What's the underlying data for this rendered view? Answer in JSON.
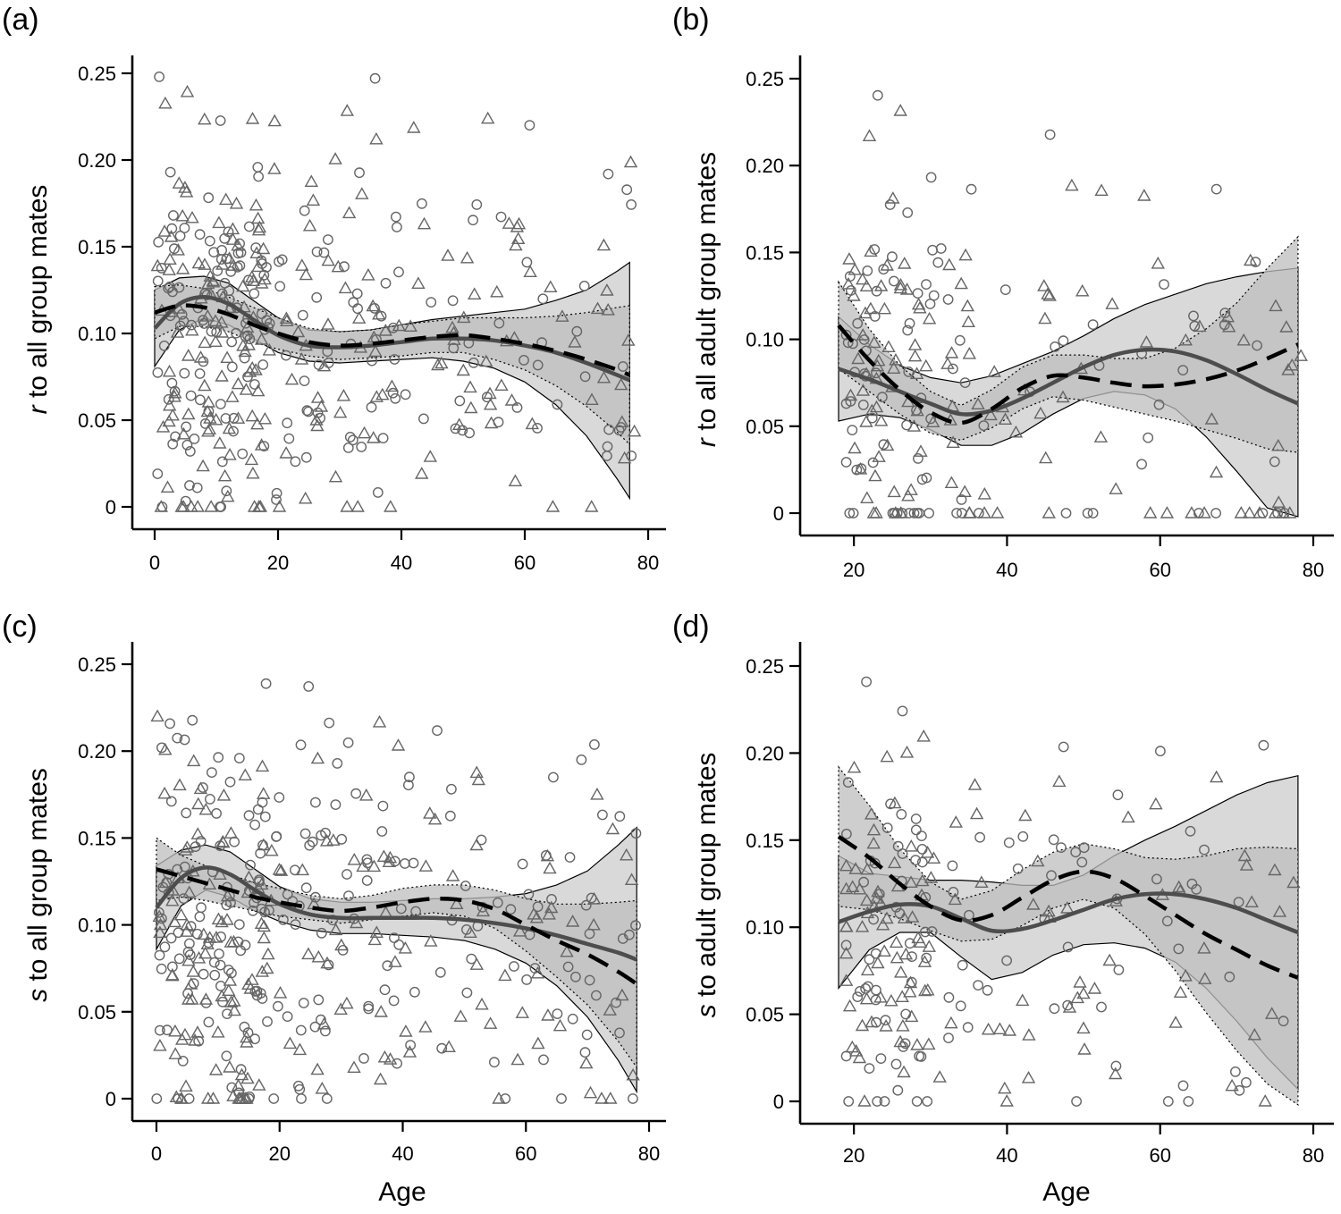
{
  "chart_data": [
    {
      "type": "scatter",
      "panel_label": "(a)",
      "xlabel": "",
      "ylabel_italic": "r",
      "ylabel_rest": " to all group mates",
      "xlim": [
        0,
        80
      ],
      "ylim": [
        0,
        0.25
      ],
      "xticks": [
        0,
        20,
        40,
        60,
        80
      ],
      "yticks": [
        0,
        0.05,
        0.1,
        0.15,
        0.2,
        0.25
      ],
      "ytick_labels": [
        "0",
        "0.05",
        "0.10",
        "0.15",
        "0.20",
        "0.25"
      ],
      "fit_range": [
        0,
        77
      ],
      "series": [
        {
          "style": "solid",
          "fit": {
            "x": [
              0,
              4,
              8,
              12,
              16,
              20,
              25,
              30,
              35,
              40,
              45,
              50,
              55,
              60,
              65,
              70,
              75,
              77
            ],
            "y": [
              0.103,
              0.117,
              0.121,
              0.117,
              0.108,
              0.099,
              0.093,
              0.092,
              0.093,
              0.095,
              0.097,
              0.097,
              0.096,
              0.093,
              0.089,
              0.083,
              0.076,
              0.073
            ]
          },
          "band_width": [
            0.022,
            0.015,
            0.012,
            0.012,
            0.011,
            0.01,
            0.009,
            0.009,
            0.009,
            0.01,
            0.011,
            0.013,
            0.016,
            0.021,
            0.03,
            0.042,
            0.06,
            0.068
          ]
        },
        {
          "style": "dashed",
          "fit": {
            "x": [
              0,
              4,
              8,
              12,
              16,
              20,
              25,
              30,
              35,
              40,
              45,
              50,
              55,
              60,
              65,
              70,
              75,
              77
            ],
            "y": [
              0.112,
              0.116,
              0.115,
              0.111,
              0.105,
              0.1,
              0.095,
              0.093,
              0.094,
              0.096,
              0.098,
              0.099,
              0.097,
              0.094,
              0.09,
              0.085,
              0.079,
              0.076
            ]
          },
          "band_width": [
            0.015,
            0.012,
            0.011,
            0.01,
            0.01,
            0.009,
            0.008,
            0.008,
            0.008,
            0.009,
            0.009,
            0.01,
            0.012,
            0.015,
            0.02,
            0.027,
            0.036,
            0.04
          ]
        }
      ]
    },
    {
      "type": "scatter",
      "panel_label": "(b)",
      "xlabel": "",
      "ylabel_italic": "r",
      "ylabel_rest": " to all adult group mates",
      "xlim": [
        18,
        80
      ],
      "ylim": [
        0,
        0.25
      ],
      "xticks": [
        20,
        40,
        60,
        80
      ],
      "yticks": [
        0,
        0.05,
        0.1,
        0.15,
        0.2,
        0.25
      ],
      "ytick_labels": [
        "0",
        "0.05",
        "0.10",
        "0.15",
        "0.20",
        "0.25"
      ],
      "fit_range": [
        18,
        78
      ],
      "series": [
        {
          "style": "solid",
          "fit": {
            "x": [
              18,
              22,
              26,
              30,
              34,
              38,
              42,
              46,
              50,
              54,
              58,
              62,
              66,
              70,
              74,
              78
            ],
            "y": [
              0.083,
              0.077,
              0.07,
              0.063,
              0.057,
              0.059,
              0.066,
              0.075,
              0.084,
              0.091,
              0.094,
              0.093,
              0.088,
              0.08,
              0.071,
              0.063
            ]
          },
          "band_width": [
            0.03,
            0.02,
            0.015,
            0.015,
            0.018,
            0.02,
            0.02,
            0.018,
            0.018,
            0.021,
            0.026,
            0.033,
            0.044,
            0.056,
            0.068,
            0.078
          ]
        },
        {
          "style": "dashed",
          "fit": {
            "x": [
              18,
              22,
              26,
              30,
              34,
              38,
              42,
              46,
              50,
              54,
              58,
              62,
              66,
              70,
              74,
              78
            ],
            "y": [
              0.108,
              0.088,
              0.071,
              0.058,
              0.052,
              0.06,
              0.072,
              0.079,
              0.078,
              0.075,
              0.073,
              0.074,
              0.077,
              0.082,
              0.089,
              0.097
            ]
          },
          "band_width": [
            0.025,
            0.018,
            0.014,
            0.012,
            0.01,
            0.011,
            0.012,
            0.012,
            0.013,
            0.014,
            0.016,
            0.021,
            0.029,
            0.039,
            0.052,
            0.062
          ]
        }
      ]
    },
    {
      "type": "scatter",
      "panel_label": "(c)",
      "xlabel": "Age",
      "ylabel_italic": "s",
      "ylabel_rest": " to all group mates",
      "xlim": [
        0,
        80
      ],
      "ylim": [
        0,
        0.25
      ],
      "xticks": [
        0,
        20,
        40,
        60,
        80
      ],
      "yticks": [
        0,
        0.05,
        0.1,
        0.15,
        0.2,
        0.25
      ],
      "ytick_labels": [
        "0",
        "0.05",
        "0.10",
        "0.15",
        "0.20",
        "0.25"
      ],
      "fit_range": [
        0,
        78
      ],
      "series": [
        {
          "style": "solid",
          "fit": {
            "x": [
              0,
              4,
              8,
              12,
              16,
              20,
              25,
              30,
              35,
              40,
              45,
              50,
              55,
              60,
              65,
              70,
              75,
              78
            ],
            "y": [
              0.11,
              0.127,
              0.133,
              0.129,
              0.12,
              0.112,
              0.106,
              0.104,
              0.104,
              0.104,
              0.104,
              0.103,
              0.101,
              0.098,
              0.094,
              0.089,
              0.084,
              0.08
            ]
          },
          "band_width": [
            0.024,
            0.016,
            0.013,
            0.013,
            0.012,
            0.01,
            0.009,
            0.009,
            0.009,
            0.01,
            0.011,
            0.012,
            0.015,
            0.02,
            0.029,
            0.042,
            0.062,
            0.076
          ]
        },
        {
          "style": "dashed",
          "fit": {
            "x": [
              0,
              4,
              8,
              12,
              16,
              20,
              25,
              30,
              35,
              40,
              45,
              50,
              55,
              60,
              65,
              70,
              75,
              78
            ],
            "y": [
              0.132,
              0.128,
              0.124,
              0.12,
              0.116,
              0.113,
              0.11,
              0.108,
              0.11,
              0.113,
              0.115,
              0.114,
              0.109,
              0.1,
              0.091,
              0.083,
              0.073,
              0.066
            ]
          },
          "band_width": [
            0.018,
            0.012,
            0.01,
            0.009,
            0.008,
            0.008,
            0.007,
            0.007,
            0.007,
            0.008,
            0.008,
            0.009,
            0.011,
            0.015,
            0.021,
            0.029,
            0.04,
            0.048
          ]
        }
      ]
    },
    {
      "type": "scatter",
      "panel_label": "(d)",
      "xlabel": "Age",
      "ylabel_italic": "s",
      "ylabel_rest": " to adult group mates",
      "xlim": [
        18,
        80
      ],
      "ylim": [
        0,
        0.25
      ],
      "xticks": [
        20,
        40,
        60,
        80
      ],
      "yticks": [
        0,
        0.05,
        0.1,
        0.15,
        0.2,
        0.25
      ],
      "ytick_labels": [
        "0",
        "0.05",
        "0.10",
        "0.15",
        "0.20",
        "0.25"
      ],
      "fit_range": [
        18,
        78
      ],
      "series": [
        {
          "style": "solid",
          "fit": {
            "x": [
              18,
              22,
              26,
              30,
              34,
              38,
              42,
              46,
              50,
              54,
              58,
              62,
              66,
              70,
              74,
              78
            ],
            "y": [
              0.103,
              0.109,
              0.113,
              0.112,
              0.105,
              0.098,
              0.099,
              0.104,
              0.11,
              0.116,
              0.119,
              0.119,
              0.116,
              0.111,
              0.104,
              0.097
            ]
          },
          "band_width": [
            0.038,
            0.022,
            0.016,
            0.015,
            0.022,
            0.028,
            0.025,
            0.02,
            0.02,
            0.025,
            0.031,
            0.039,
            0.051,
            0.065,
            0.079,
            0.09
          ]
        },
        {
          "style": "dashed",
          "fit": {
            "x": [
              18,
              22,
              26,
              30,
              34,
              38,
              42,
              46,
              50,
              54,
              58,
              62,
              66,
              70,
              74,
              78
            ],
            "y": [
              0.152,
              0.14,
              0.125,
              0.112,
              0.104,
              0.107,
              0.117,
              0.127,
              0.132,
              0.128,
              0.118,
              0.107,
              0.096,
              0.087,
              0.078,
              0.071
            ]
          },
          "band_width": [
            0.04,
            0.03,
            0.02,
            0.014,
            0.012,
            0.014,
            0.016,
            0.016,
            0.016,
            0.017,
            0.022,
            0.032,
            0.045,
            0.058,
            0.068,
            0.074
          ]
        }
      ]
    }
  ]
}
